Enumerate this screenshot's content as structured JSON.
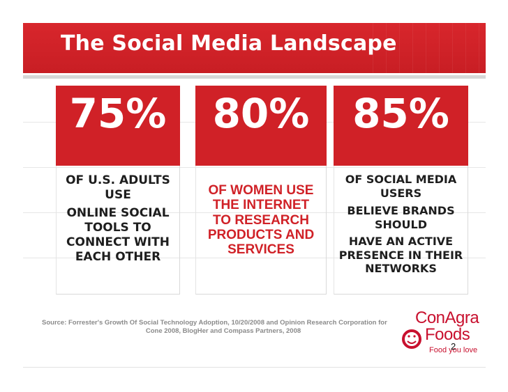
{
  "slide": {
    "title": "The Social Media Landscape",
    "stats": [
      {
        "percent": "75%",
        "lines": [
          "OF U.S. ADULTS",
          "USE",
          "ONLINE SOCIAL",
          "TOOLS TO",
          "CONNECT WITH",
          "EACH OTHER"
        ]
      },
      {
        "percent": "80%",
        "lines": [
          "OF WOMEN USE",
          "THE INTERNET",
          "TO RESEARCH",
          "PRODUCTS AND",
          "SERVICES"
        ]
      },
      {
        "percent": "85%",
        "lines": [
          "OF SOCIAL MEDIA",
          "USERS",
          "BELIEVE BRANDS",
          "SHOULD",
          "HAVE AN ACTIVE",
          "PRESENCE IN THEIR",
          "NETWORKS"
        ]
      }
    ],
    "source_line1": "Source: Forrester's Growth Of Social Technology Adoption, 10/20/2008 and Opinion Research Corporation for",
    "source_line2": "Cone 2008, BlogHer and Compass Partners, 2008",
    "page_number": "2"
  },
  "logo": {
    "word1": "ConAgra",
    "word2": "Foods",
    "tagline": "Food you love"
  },
  "colors": {
    "accent_red": "#d02127",
    "title_bar": "#c81e24",
    "text_dark": "#1e1e1e",
    "source_gray": "#8a8a8a"
  }
}
